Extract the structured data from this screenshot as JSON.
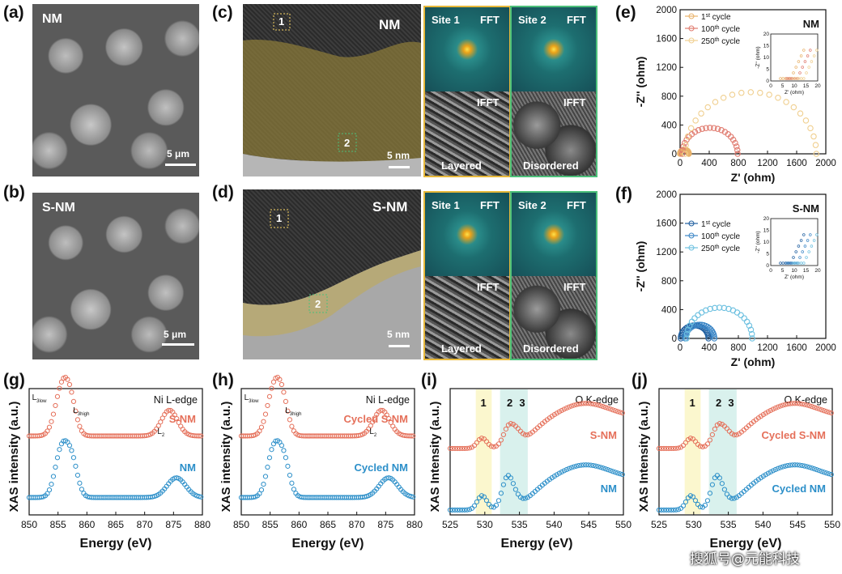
{
  "panels": {
    "a": {
      "label": "(a)",
      "sample": "NM",
      "scale": "5 μm"
    },
    "b": {
      "label": "(b)",
      "sample": "S-NM",
      "scale": "5 μm"
    },
    "c": {
      "label": "(c)",
      "sample": "NM",
      "scale": "5 nm",
      "site1": "1",
      "site2": "2",
      "fft1_title": "Site 1",
      "fft2_title": "Site 2",
      "fft": "FFT",
      "ifft": "IFFT",
      "layered": "Layered",
      "disordered": "Disordered"
    },
    "d": {
      "label": "(d)",
      "sample": "S-NM",
      "scale": "5 nm",
      "site1": "1",
      "site2": "2",
      "fft1_title": "Site 1",
      "fft2_title": "Site 2",
      "fft": "FFT",
      "ifft": "IFFT",
      "layered": "Layered",
      "disordered": "Disordered"
    },
    "e": {
      "label": "(e)"
    },
    "f": {
      "label": "(f)"
    },
    "g": {
      "label": "(g)"
    },
    "h": {
      "label": "(h)"
    },
    "i": {
      "label": "(i)"
    },
    "j": {
      "label": "(j)"
    }
  },
  "colors": {
    "nm": "#e8b26a",
    "nm100": "#e07a6e",
    "snm": "#1f5fa0",
    "snm100": "#3b86c6",
    "snm250": "#6cc0e0",
    "red": "#e5705a",
    "blue": "#2c8fc9"
  },
  "watermark": "搜狐号@元能科技",
  "chart_data": [
    {
      "id": "e",
      "type": "scatter",
      "title": "NM",
      "xlabel": "Z' (ohm)",
      "ylabel": "-Z'' (ohm)",
      "xlim": [
        0,
        2000
      ],
      "ylim": [
        0,
        2000
      ],
      "xticks": [
        "0",
        "400",
        "800",
        "1200",
        "1600",
        "2000"
      ],
      "yticks": [
        "0",
        "400",
        "800",
        "1200",
        "1600",
        "2000"
      ],
      "legend": [
        "1st cycle",
        "100th cycle",
        "250th cycle"
      ],
      "series": [
        {
          "name": "1st cycle",
          "center": 60,
          "radius": 60
        },
        {
          "name": "100th cycle",
          "center": 410,
          "radius": 380
        },
        {
          "name": "250th cycle",
          "center": 970,
          "radius": 900
        }
      ],
      "inset": {
        "xlabel": "Z' (ohm)",
        "ylabel": "-Z'' (ohm)",
        "xticks": [
          "0",
          "5",
          "10",
          "15",
          "20"
        ],
        "yticks": [
          "0",
          "5",
          "10",
          "15",
          "20"
        ]
      }
    },
    {
      "id": "f",
      "type": "scatter",
      "title": "S-NM",
      "xlabel": "Z' (ohm)",
      "ylabel": "-Z'' (ohm)",
      "xlim": [
        0,
        2000
      ],
      "ylim": [
        0,
        2000
      ],
      "xticks": [
        "0",
        "400",
        "800",
        "1200",
        "1600",
        "2000"
      ],
      "yticks": [
        "0",
        "400",
        "800",
        "1200",
        "1600",
        "2000"
      ],
      "legend": [
        "1st cycle",
        "100th cycle",
        "250th cycle"
      ],
      "series": [
        {
          "name": "1st cycle",
          "center": 200,
          "radius": 190
        },
        {
          "name": "100th cycle",
          "center": 270,
          "radius": 200
        },
        {
          "name": "250th cycle",
          "center": 540,
          "radius": 450
        }
      ],
      "inset": {
        "xlabel": "Z' (ohm)",
        "ylabel": "-Z'' (ohm)",
        "xticks": [
          "0",
          "5",
          "10",
          "15",
          "20"
        ],
        "yticks": [
          "0",
          "5",
          "10",
          "15",
          "20"
        ]
      }
    },
    {
      "id": "g",
      "type": "line",
      "title": "Ni L-edge",
      "xlabel": "Energy (eV)",
      "ylabel": "XAS intensity (a.u.)",
      "xlim": [
        850,
        880
      ],
      "xticks": [
        "850",
        "855",
        "860",
        "865",
        "870",
        "875",
        "880"
      ],
      "series": [
        {
          "name": "S-NM"
        },
        {
          "name": "NM"
        }
      ],
      "annotations": [
        "L3low",
        "L3high",
        "L2"
      ]
    },
    {
      "id": "h",
      "type": "line",
      "title": "Ni L-edge",
      "xlabel": "Energy (eV)",
      "ylabel": "XAS intensity (a.u.)",
      "xlim": [
        850,
        880
      ],
      "xticks": [
        "850",
        "855",
        "860",
        "865",
        "870",
        "875",
        "880"
      ],
      "series": [
        {
          "name": "Cycled S-NM"
        },
        {
          "name": "Cycled NM"
        }
      ],
      "annotations": [
        "L3low",
        "L3high",
        "L2"
      ]
    },
    {
      "id": "i",
      "type": "line",
      "title": "O K-edge",
      "xlabel": "Energy (eV)",
      "ylabel": "XAS Intensity (a.u.)",
      "xlim": [
        525,
        550
      ],
      "xticks": [
        "525",
        "530",
        "535",
        "540",
        "545",
        "550"
      ],
      "series": [
        {
          "name": "S-NM"
        },
        {
          "name": "NM"
        }
      ],
      "bands": [
        "1",
        "2",
        "3"
      ]
    },
    {
      "id": "j",
      "type": "line",
      "title": "O K-edge",
      "xlabel": "Energy (eV)",
      "ylabel": "XAS Intensity (a.u.)",
      "xlim": [
        525,
        550
      ],
      "xticks": [
        "525",
        "530",
        "535",
        "540",
        "545",
        "550"
      ],
      "series": [
        {
          "name": "Cycled S-NM"
        },
        {
          "name": "Cycled NM"
        }
      ],
      "bands": [
        "1",
        "2",
        "3"
      ]
    }
  ]
}
